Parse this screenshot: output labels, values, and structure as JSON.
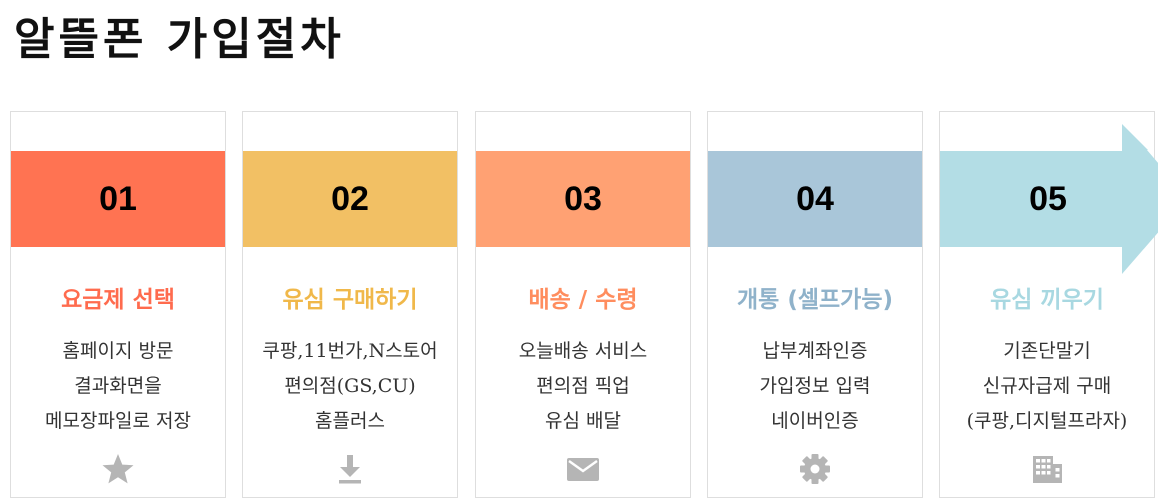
{
  "title": "알뜰폰 가입절차",
  "steps": [
    {
      "number": "01",
      "title": "요금제 선택",
      "color": "#ff7352",
      "title_color": "#ff6b4e",
      "lines": [
        "홈페이지 방문",
        "결과화면을",
        "메모장파일로 저장"
      ],
      "icon": "star-icon"
    },
    {
      "number": "02",
      "title": "유심 구매하기",
      "color": "#f2c064",
      "title_color": "#f0b84a",
      "lines": [
        "쿠팡,11번가,N스토어",
        "편의점(GS,CU)",
        "홈플러스"
      ],
      "icon": "download-icon"
    },
    {
      "number": "03",
      "title": "배송 / 수령",
      "color": "#ffa173",
      "title_color": "#ff8d5e",
      "lines": [
        "오늘배송 서비스",
        "편의점 픽업",
        "유심 배달"
      ],
      "icon": "mail-icon"
    },
    {
      "number": "04",
      "title": "개통 (셀프가능)",
      "color": "#a9c6d9",
      "title_color": "#8fb2ca",
      "lines": [
        "납부계좌인증",
        "가입정보 입력",
        "네이버인증"
      ],
      "icon": "gear-icon"
    },
    {
      "number": "05",
      "title": "유심 끼우기",
      "color": "#b3dde5",
      "title_color": "#a8d8e1",
      "lines": [
        "기존단말기",
        "신규자급제 구매",
        "(쿠팡,디지털프라자)"
      ],
      "icon": "building-icon"
    }
  ]
}
